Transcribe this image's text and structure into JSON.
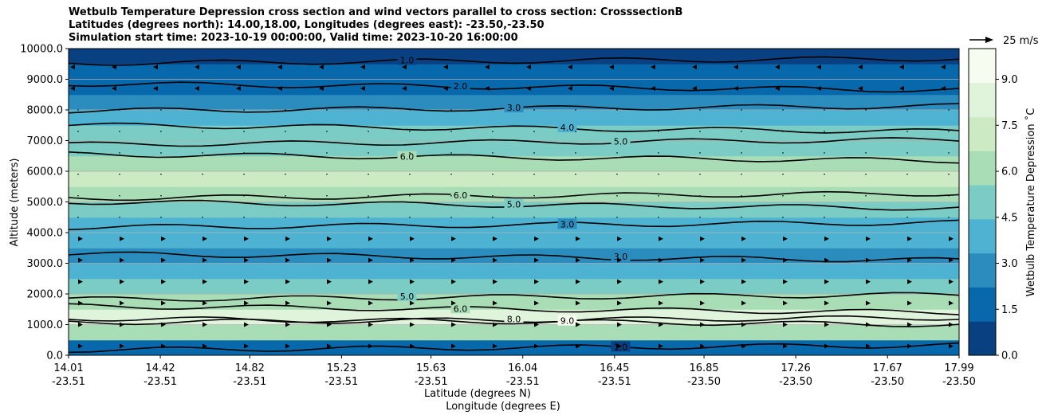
{
  "chart_data": {
    "type": "heatmap",
    "title_lines": [
      "Wetbulb Temperature Depression cross section and wind vectors parallel to cross section: CrosssectionB",
      "Latitudes (degrees north): 14.00,18.00, Longitudes (degrees east): -23.50,-23.50",
      "Simulation start time: 2023-10-19 00:00:00, Valid time: 2023-10-20 16:00:00"
    ],
    "ylabel": "Altitude (meters)",
    "xlabel_lat": "Latitude (degrees N)",
    "xlabel_lon": "Longitude (degrees E)",
    "ylim": [
      0,
      10000
    ],
    "yticks": [
      "0.0",
      "1000.0",
      "2000.0",
      "3000.0",
      "4000.0",
      "5000.0",
      "6000.0",
      "7000.0",
      "8000.0",
      "9000.0",
      "10000.0"
    ],
    "ytick_values": [
      0,
      1000,
      2000,
      3000,
      4000,
      5000,
      6000,
      7000,
      8000,
      9000,
      10000
    ],
    "xlim": [
      14.01,
      17.99
    ],
    "xticks": [
      {
        "lat": "14.01",
        "lon": "-23.51",
        "v": 14.01
      },
      {
        "lat": "14.42",
        "lon": "-23.51",
        "v": 14.42
      },
      {
        "lat": "14.82",
        "lon": "-23.51",
        "v": 14.82
      },
      {
        "lat": "15.23",
        "lon": "-23.51",
        "v": 15.23
      },
      {
        "lat": "15.63",
        "lon": "-23.51",
        "v": 15.63
      },
      {
        "lat": "16.04",
        "lon": "-23.51",
        "v": 16.04
      },
      {
        "lat": "16.45",
        "lon": "-23.51",
        "v": 16.45
      },
      {
        "lat": "16.85",
        "lon": "-23.50",
        "v": 16.85
      },
      {
        "lat": "17.26",
        "lon": "-23.50",
        "v": 17.26
      },
      {
        "lat": "17.67",
        "lon": "-23.50",
        "v": 17.67
      },
      {
        "lat": "17.99",
        "lon": "-23.50",
        "v": 17.99
      }
    ],
    "grid": "horizontal",
    "colorbar": {
      "label": "Wetbulb Temperature Depression $^\\circ$C",
      "label_display": "Wetbulb Temperature Depression ˚C",
      "range": [
        0,
        10
      ],
      "ticks": [
        "0.0",
        "1.5",
        "3.0",
        "4.5",
        "6.0",
        "7.5",
        "9.0"
      ],
      "tick_values": [
        0,
        1.5,
        3.0,
        4.5,
        6.0,
        7.5,
        9.0
      ],
      "colors": [
        "#084081",
        "#0868ac",
        "#2b8cbe",
        "#4eb3d3",
        "#7bccc4",
        "#a8ddb5",
        "#ccebc5",
        "#e0f3db",
        "#f7fcf0"
      ]
    },
    "wind_key": {
      "label": "25 m/s",
      "value": 25
    },
    "contour_levels": [
      {
        "level": 1.0,
        "alt": 9600,
        "label": "1.0"
      },
      {
        "level": 2.0,
        "alt": 8750,
        "label": "2.0"
      },
      {
        "level": 3.0,
        "alt": 8050,
        "label": "3.0"
      },
      {
        "level": 4.0,
        "alt": 7400,
        "label": "4.0"
      },
      {
        "level": 5.0,
        "alt": 6950,
        "label": "5.0"
      },
      {
        "level": 6.0,
        "alt": 6450,
        "label": "6.0"
      },
      {
        "level": 6.0,
        "alt": 5200,
        "label": "6.0"
      },
      {
        "level": 5.0,
        "alt": 4900,
        "label": "5.0"
      },
      {
        "level": 3.0,
        "alt": 4250,
        "label": "3.0"
      },
      {
        "level": 3.0,
        "alt": 3200,
        "label": "3.0"
      },
      {
        "level": 5.0,
        "alt": 1900,
        "label": "5.0"
      },
      {
        "level": 6.0,
        "alt": 1500,
        "label": "6.0"
      },
      {
        "level": 8.0,
        "alt": 1150,
        "label": "8.0"
      },
      {
        "level": 9.0,
        "alt": 1100,
        "label": "9.0"
      },
      {
        "level": 1.0,
        "alt": 250,
        "label": "1.0"
      }
    ],
    "background_profile": [
      {
        "alt": 0,
        "value": 1.0
      },
      {
        "alt": 500,
        "value": 2.0
      },
      {
        "alt": 1000,
        "value": 9.5
      },
      {
        "alt": 1500,
        "value": 6.5
      },
      {
        "alt": 2000,
        "value": 5.0
      },
      {
        "alt": 2500,
        "value": 4.0
      },
      {
        "alt": 3000,
        "value": 3.0
      },
      {
        "alt": 3500,
        "value": 3.2
      },
      {
        "alt": 4000,
        "value": 3.8
      },
      {
        "alt": 4500,
        "value": 4.8
      },
      {
        "alt": 5000,
        "value": 6.0
      },
      {
        "alt": 5500,
        "value": 7.0
      },
      {
        "alt": 6000,
        "value": 7.2
      },
      {
        "alt": 6500,
        "value": 6.0
      },
      {
        "alt": 7000,
        "value": 5.0
      },
      {
        "alt": 7500,
        "value": 4.0
      },
      {
        "alt": 8000,
        "value": 3.0
      },
      {
        "alt": 8500,
        "value": 2.2
      },
      {
        "alt": 9000,
        "value": 1.8
      },
      {
        "alt": 9500,
        "value": 1.2
      },
      {
        "alt": 10000,
        "value": 0.8
      }
    ]
  }
}
